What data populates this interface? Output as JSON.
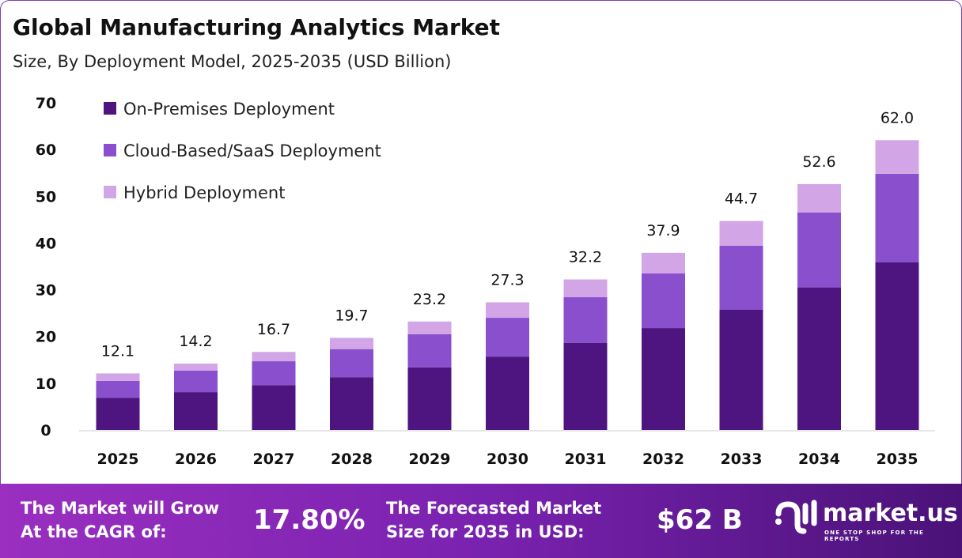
{
  "title": "Global Manufacturing Analytics Market",
  "subtitle": "Size, By Deployment Model, 2025-2035 (USD Billion)",
  "chart_data": {
    "type": "bar",
    "stacked": true,
    "categories": [
      "2025",
      "2026",
      "2027",
      "2028",
      "2029",
      "2030",
      "2031",
      "2032",
      "2033",
      "2034",
      "2035"
    ],
    "series": [
      {
        "name": "On-Premises Deployment",
        "color": "#4e1580",
        "values": [
          6.9,
          8.1,
          9.6,
          11.3,
          13.4,
          15.7,
          18.6,
          21.8,
          25.7,
          30.5,
          35.9
        ]
      },
      {
        "name": "Cloud-Based/SaaS Deployment",
        "color": "#8a4fcc",
        "values": [
          3.6,
          4.6,
          5.1,
          6.0,
          7.1,
          8.3,
          9.8,
          11.7,
          13.7,
          16.0,
          18.9
        ]
      },
      {
        "name": "Hybrid Deployment",
        "color": "#d2a6e6",
        "values": [
          1.6,
          1.5,
          2.0,
          2.4,
          2.7,
          3.3,
          3.8,
          4.4,
          5.3,
          6.1,
          7.2
        ]
      }
    ],
    "totals": [
      "12.1",
      "14.2",
      "16.7",
      "19.7",
      "23.2",
      "27.3",
      "32.2",
      "37.9",
      "44.7",
      "52.6",
      "62.0"
    ],
    "yticks": [
      "0",
      "10",
      "20",
      "30",
      "40",
      "50",
      "60",
      "70"
    ],
    "ylim": [
      0,
      70
    ],
    "grid": false,
    "legend": "top-left"
  },
  "footer": {
    "cagr_label_1": "The Market will Grow",
    "cagr_label_2": "At the CAGR of:",
    "cagr_value": "17.80%",
    "forecast_label_1": "The Forecasted Market",
    "forecast_label_2": "Size for 2035 in USD:",
    "forecast_value": "$62 B",
    "brand": "market.us",
    "tagline": "ONE STOP SHOP FOR THE REPORTS"
  }
}
